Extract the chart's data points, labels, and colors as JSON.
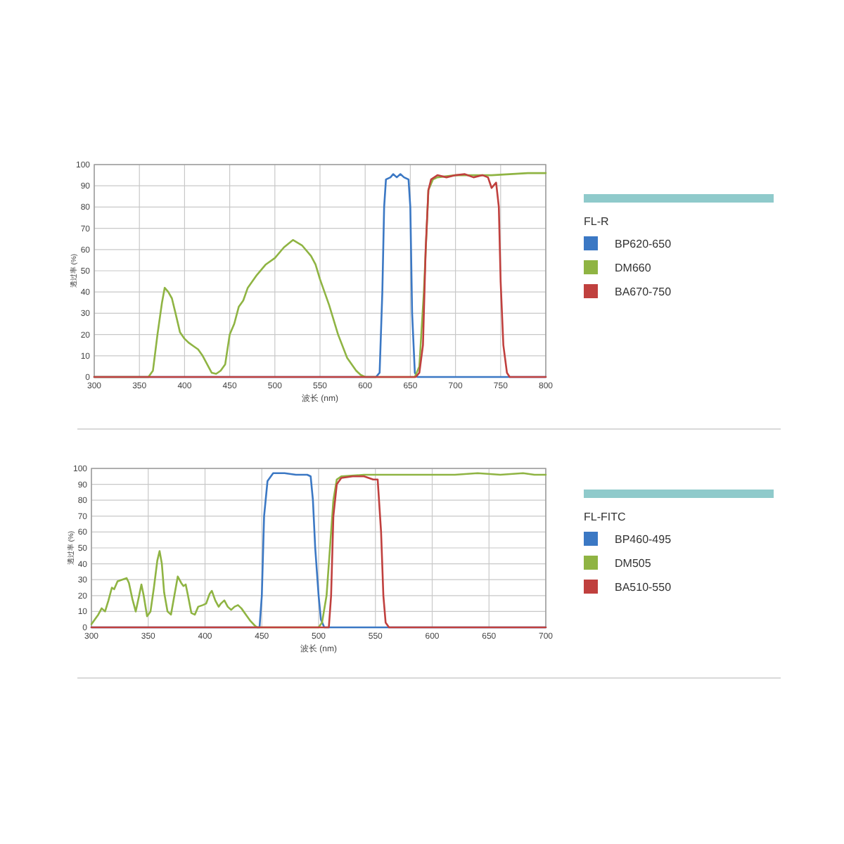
{
  "chart_data": [
    {
      "type": "line",
      "xlabel": "波长 (nm)",
      "ylabel": "透过率 (%)",
      "legend_title": "FL-R",
      "legend": "right",
      "grid": true,
      "xlim": [
        300,
        800
      ],
      "xticks": [
        300,
        350,
        400,
        450,
        500,
        550,
        600,
        650,
        700,
        750,
        800
      ],
      "ylim": [
        0,
        100
      ],
      "yticks": [
        0,
        10,
        20,
        30,
        40,
        50,
        60,
        70,
        80,
        90,
        100
      ],
      "series": [
        {
          "name": "BP620-650",
          "color": "#3b78c4",
          "x": [
            300,
            612,
            616,
            619,
            621,
            623,
            628,
            631,
            635,
            639,
            643,
            648,
            650,
            652,
            655,
            658,
            800
          ],
          "values": [
            0,
            0,
            2,
            40,
            80,
            93,
            94,
            95.5,
            94,
            95.5,
            94,
            93,
            80,
            30,
            2,
            0,
            0
          ]
        },
        {
          "name": "DM660",
          "color": "#8fb443",
          "x": [
            300,
            360,
            365,
            370,
            375,
            378,
            382,
            386,
            390,
            395,
            400,
            405,
            410,
            415,
            420,
            425,
            430,
            435,
            440,
            445,
            450,
            455,
            460,
            465,
            470,
            480,
            490,
            500,
            510,
            520,
            530,
            540,
            545,
            550,
            560,
            570,
            580,
            590,
            595,
            600,
            655,
            660,
            665,
            670,
            675,
            680,
            700,
            720,
            740,
            760,
            780,
            800
          ],
          "values": [
            0,
            0,
            3,
            20,
            35,
            42,
            40,
            37,
            30,
            21,
            18,
            16,
            14.5,
            13,
            10,
            6,
            2,
            1.5,
            3,
            6,
            20,
            25,
            33,
            36,
            42,
            48,
            53,
            56,
            61,
            64.5,
            62,
            57,
            53,
            46,
            34,
            20,
            9,
            3,
            1,
            0,
            0,
            5,
            40,
            88,
            93,
            94,
            95,
            95,
            95,
            95.5,
            96,
            96
          ]
        },
        {
          "name": "BA670-750",
          "color": "#c0403e",
          "x": [
            300,
            656,
            660,
            664,
            667,
            670,
            673,
            680,
            690,
            700,
            710,
            720,
            730,
            736,
            740,
            742,
            745,
            748,
            750,
            753,
            757,
            760,
            800
          ],
          "values": [
            0,
            0,
            2,
            15,
            60,
            88,
            93,
            95,
            94,
            95,
            95.5,
            94,
            95,
            94,
            89,
            90,
            91.5,
            80,
            45,
            15,
            2,
            0,
            0
          ]
        }
      ]
    },
    {
      "type": "line",
      "xlabel": "波长 (nm)",
      "ylabel": "透过率 (%)",
      "legend_title": "FL-FITC",
      "legend": "right",
      "grid": true,
      "xlim": [
        300,
        700
      ],
      "xticks": [
        300,
        350,
        400,
        450,
        500,
        550,
        600,
        650,
        700
      ],
      "ylim": [
        0,
        100
      ],
      "yticks": [
        0,
        10,
        20,
        30,
        40,
        50,
        60,
        70,
        80,
        90,
        100
      ],
      "series": [
        {
          "name": "BP460-495",
          "color": "#3b78c4",
          "x": [
            300,
            448,
            450,
            452,
            455,
            460,
            470,
            480,
            490,
            493,
            495,
            497,
            500,
            502,
            505,
            700
          ],
          "values": [
            0,
            0,
            20,
            70,
            92,
            97,
            97,
            96,
            96,
            95,
            80,
            50,
            20,
            5,
            0,
            0
          ]
        },
        {
          "name": "DM505",
          "color": "#8fb443",
          "x": [
            300,
            303,
            306,
            309,
            312,
            315,
            318,
            320,
            323,
            327,
            331,
            333,
            336,
            339,
            342,
            344,
            346,
            349,
            352,
            355,
            358,
            360,
            362,
            364,
            367,
            370,
            373,
            376,
            379,
            381,
            383,
            385,
            388,
            391,
            394,
            398,
            401,
            404,
            406,
            409,
            412,
            414,
            417,
            420,
            423,
            426,
            429,
            432,
            436,
            440,
            444,
            446,
            500,
            503,
            507,
            510,
            513,
            516,
            520,
            540,
            560,
            580,
            600,
            620,
            640,
            660,
            680,
            690,
            700
          ],
          "values": [
            2,
            5,
            8,
            12,
            10,
            17,
            25,
            24,
            29,
            30,
            31,
            28,
            18,
            10,
            20,
            27,
            20,
            7,
            10,
            25,
            42,
            48,
            40,
            22,
            10,
            8,
            20,
            32,
            28,
            26,
            27,
            20,
            9,
            8,
            13,
            14,
            15,
            21,
            23,
            17,
            13,
            15,
            17,
            13,
            11,
            13,
            14,
            12,
            8,
            4,
            1,
            0,
            0,
            3,
            20,
            50,
            80,
            93,
            95,
            96,
            96,
            96,
            96,
            96,
            97,
            96,
            97,
            96,
            96
          ]
        },
        {
          "name": "BA510-550",
          "color": "#c0403e",
          "x": [
            300,
            509,
            511,
            513,
            516,
            520,
            530,
            540,
            548,
            552,
            555,
            557,
            559,
            562,
            700
          ],
          "values": [
            0,
            0,
            20,
            70,
            90,
            94,
            95,
            95,
            93,
            93,
            60,
            20,
            3,
            0,
            0
          ]
        }
      ]
    }
  ]
}
